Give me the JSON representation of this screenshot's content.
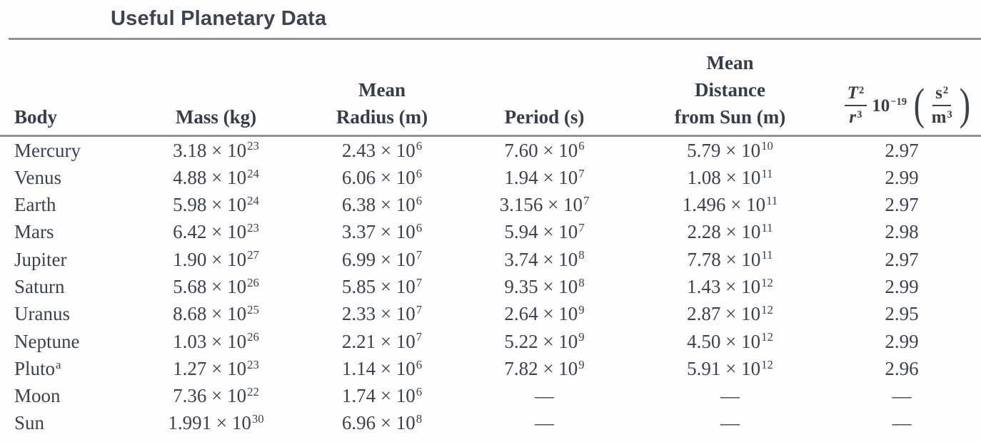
{
  "title": "Useful Planetary Data",
  "table": {
    "columns": {
      "body": {
        "lines": [
          "Body"
        ]
      },
      "mass": {
        "lines": [
          "Mass (kg)"
        ]
      },
      "radius": {
        "lines": [
          "Mean",
          "Radius (m)"
        ]
      },
      "period": {
        "lines": [
          "Period (s)"
        ]
      },
      "distance": {
        "lines": [
          "Mean",
          "Distance",
          "from Sun (m)"
        ]
      },
      "ratio": {
        "num_base": "T",
        "num_exp": "2",
        "den_base": "r",
        "den_exp": "3",
        "factor_base": "10",
        "factor_exp": "−19",
        "open_paren": "(",
        "unit_num_base": "s",
        "unit_num_exp": "2",
        "unit_den_base": "m",
        "unit_den_exp": "3",
        "close_paren": ")"
      }
    },
    "rows": [
      {
        "body": "Mercury",
        "mass": "3.18 × 10^23",
        "radius": "2.43 × 10^6",
        "period": "7.60 × 10^6",
        "distance": "5.79 × 10^10",
        "ratio": "2.97"
      },
      {
        "body": "Venus",
        "mass": "4.88 × 10^24",
        "radius": "6.06 × 10^6",
        "period": "1.94 × 10^7",
        "distance": "1.08 × 10^11",
        "ratio": "2.99"
      },
      {
        "body": "Earth",
        "mass": "5.98 × 10^24",
        "radius": "6.38 × 10^6",
        "period": "3.156 × 10^7",
        "distance": "1.496 × 10^11",
        "ratio": "2.97"
      },
      {
        "body": "Mars",
        "mass": "6.42 × 10^23",
        "radius": "3.37 × 10^6",
        "period": "5.94 × 10^7",
        "distance": "2.28 × 10^11",
        "ratio": "2.98"
      },
      {
        "body": "Jupiter",
        "mass": "1.90 × 10^27",
        "radius": "6.99 × 10^7",
        "period": "3.74 × 10^8",
        "distance": "7.78 × 10^11",
        "ratio": "2.97"
      },
      {
        "body": "Saturn",
        "mass": "5.68 × 10^26",
        "radius": "5.85 × 10^7",
        "period": "9.35 × 10^8",
        "distance": "1.43 × 10^12",
        "ratio": "2.99"
      },
      {
        "body": "Uranus",
        "mass": "8.68 × 10^25",
        "radius": "2.33 × 10^7",
        "period": "2.64 × 10^9",
        "distance": "2.87 × 10^12",
        "ratio": "2.95"
      },
      {
        "body": "Neptune",
        "mass": "1.03 × 10^26",
        "radius": "2.21 × 10^7",
        "period": "5.22 × 10^9",
        "distance": "4.50 × 10^12",
        "ratio": "2.99"
      },
      {
        "body": "Pluto^a",
        "mass": "1.27 × 10^23",
        "radius": "1.14 × 10^6",
        "period": "7.82 × 10^9",
        "distance": "5.91 × 10^12",
        "ratio": "2.96"
      },
      {
        "body": "Moon",
        "mass": "7.36 × 10^22",
        "radius": "1.74 × 10^6",
        "period": "—",
        "distance": "—",
        "ratio": "—"
      },
      {
        "body": "Sun",
        "mass": "1.991 × 10^30",
        "radius": "6.96 × 10^8",
        "period": "—",
        "distance": "—",
        "ratio": "—"
      }
    ]
  },
  "colors": {
    "text": "#3a4150",
    "rule": "#8f959b",
    "background": "#fefefe"
  }
}
